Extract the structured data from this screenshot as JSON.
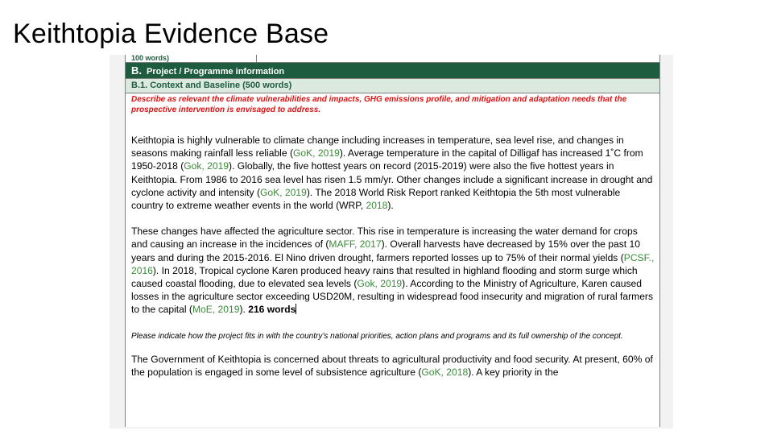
{
  "slide": {
    "title": "Keithtopia Evidence Base"
  },
  "document": {
    "prev_row_text": "100 words)",
    "section": {
      "letter": "B.",
      "title": "Project / Programme information"
    },
    "subsection": {
      "title": "B.1. Context and Baseline (500 words)"
    },
    "instruction_red": "Describe as relevant the climate vulnerabilities and impacts, GHG emissions profile, and mitigation and adaptation needs that the prospective intervention is envisaged to address.",
    "p1": [
      {
        "t": "Keithtopia is highly vulnerable to climate change including increases in temperature, sea level rise, and changes in seasons making rainfall less reliable ("
      },
      {
        "t": "GoK, 2019",
        "ref": true
      },
      {
        "t": ").  Average temperature in the capital of Dilligaf has increased 1˚C from 1950-2018 ("
      },
      {
        "t": "Gok, 2019",
        "ref": true
      },
      {
        "t": "). Globally, the five hottest years on record (2015-2019) were also the five hottest years in Keithtopia. From 1986 to 2016 sea level has risen 1.5 mm/yr. Other changes include a significant increase in drought and cyclone activity and intensity ("
      },
      {
        "t": "GoK, 2019",
        "ref": true
      },
      {
        "t": ").  The 2018 World Risk Report ranked Keithtopia the 5th most vulnerable country to extreme weather events in the world (WRP, "
      },
      {
        "t": "2018",
        "ref": true
      },
      {
        "t": ")."
      }
    ],
    "p2": [
      {
        "t": "These changes have affected the agriculture sector. This rise in temperature is increasing the water demand for crops and causing an increase in the incidences of ("
      },
      {
        "t": "MAFF, 2017",
        "ref": true
      },
      {
        "t": "). Overall harvests have decreased by 15% over the past 10 years and during the 2015-2016. El Nino driven drought, farmers reported losses up to 75% of their normal yields ("
      },
      {
        "t": "PCSF., 2016",
        "ref": true
      },
      {
        "t": ").  In 2018, Tropical cyclone Karen produced heavy rains that resulted in highland flooding and storm surge which caused coastal flooding, due to elevated sea levels ("
      },
      {
        "t": "Gok, 2019",
        "ref": true
      },
      {
        "t": "). According to the Ministry of Agriculture, Karen caused losses in the agriculture sector exceeding USD20M, resulting in widespread food insecurity and migration of rural farmers to the capital ("
      },
      {
        "t": "MoE, 2019",
        "ref": true
      },
      {
        "t": "). "
      },
      {
        "t": "216 words",
        "bold": true
      }
    ],
    "instruction_italic": "Please indicate how the project fits in with the country’s national priorities, action plans and programs and its full ownership of the concept.",
    "p3": [
      {
        "t": "The Government of Keithtopia is concerned about threats to agricultural productivity and food security. At present, 60% of the population is engaged in some level of subsistence agriculture ("
      },
      {
        "t": "GoK, 2018",
        "ref": true
      },
      {
        "t": ").  A key priority in the"
      }
    ]
  }
}
